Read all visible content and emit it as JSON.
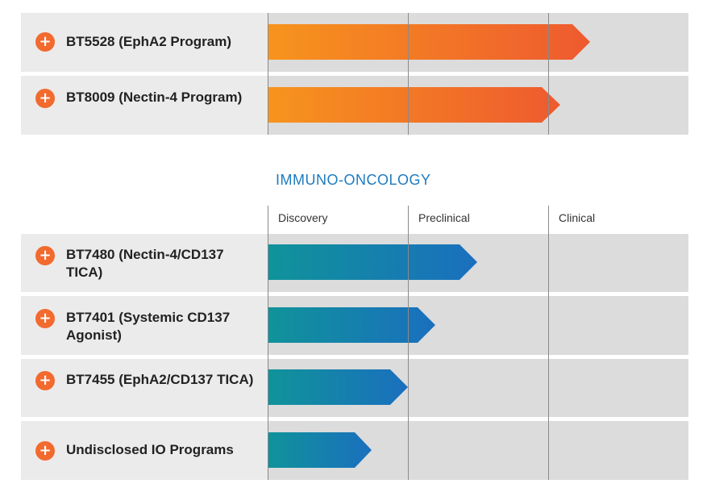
{
  "colors": {
    "plus_icon": "#f26a2e",
    "orange_bar_start": "#f7941d",
    "orange_bar_end": "#ee5a2f",
    "teal_bar_start": "#10939a",
    "teal_bar_end": "#1a6fbe",
    "section_title": "#1e7bbf"
  },
  "top_programs": [
    {
      "name": "BT5528 (EphA2 Program)"
    },
    {
      "name": "BT8009 (Nectin-4 Program)"
    }
  ],
  "immuno_oncology": {
    "title": "IMMUNO-ONCOLOGY",
    "stages": [
      "Discovery",
      "Preclinical",
      "Clinical"
    ],
    "programs": [
      {
        "name": "BT7480 (Nectin-4/CD137 TICA)"
      },
      {
        "name": "BT7401 (Systemic CD137 Agonist)"
      },
      {
        "name": "BT7455 (EphA2/CD137 TICA)"
      },
      {
        "name": "Undisclosed IO Programs"
      }
    ]
  }
}
